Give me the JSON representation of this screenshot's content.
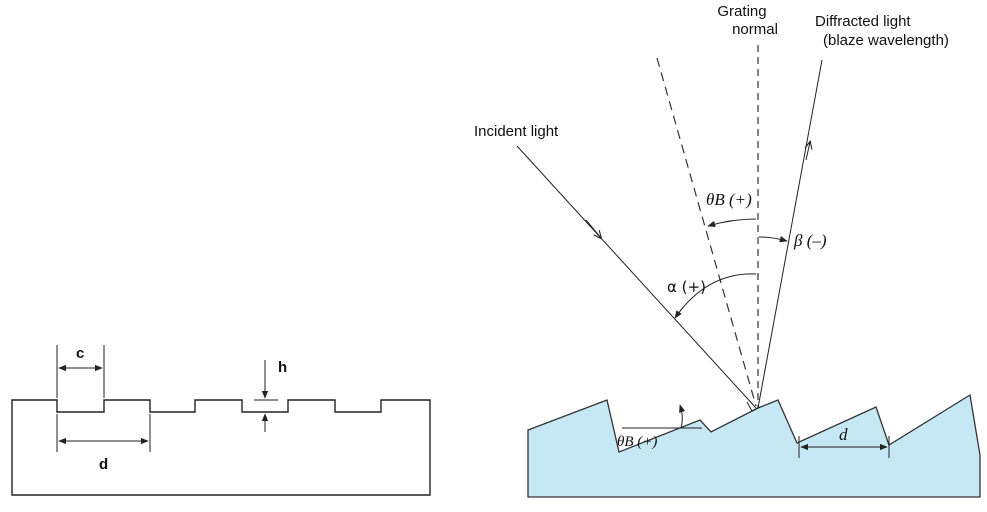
{
  "binary_grating": {
    "label_c": "c",
    "label_h": "h",
    "label_d": "d"
  },
  "blazed_grating": {
    "grating_normal_line1": "Grating",
    "grating_normal_line2": "normal",
    "diffracted_line1": "Diffracted light",
    "diffracted_line2": "(blaze wavelength)",
    "incident_light": "Incident light",
    "theta_b_symbol": "θB (+)",
    "theta_b_surface_symbol": "θB (+)",
    "beta_symbol": "β (–)",
    "alpha_symbol": "α (+)",
    "d_symbol": "d",
    "substrate_color": "#c5e8f4"
  }
}
